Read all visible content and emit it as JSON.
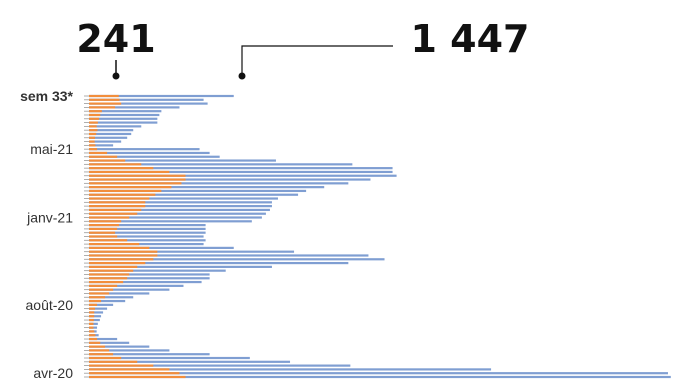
{
  "chart_data": {
    "type": "bar",
    "orientation": "horizontal",
    "stacking": "overlay",
    "xlim": [
      0,
      1450
    ],
    "grid": false,
    "legend": "none",
    "colors": {
      "orange": "#F28E3C",
      "blue": "#7F9ED2",
      "text": "#111111",
      "tick": "#999999"
    },
    "annotations": [
      {
        "text": "241",
        "value": 241
      },
      {
        "text": "1 447",
        "value": 1447
      }
    ],
    "ytick_labels": [
      {
        "text": "sem 33*",
        "row": 0,
        "bold": true
      },
      {
        "text": "mai-21",
        "row": 14
      },
      {
        "text": "janv-21",
        "row": 32
      },
      {
        "text": "août-20",
        "row": 55
      },
      {
        "text": "avr-20",
        "row": 73
      }
    ],
    "series": [
      {
        "values": [
          74,
          76,
          80,
          65,
          32,
          28,
          25,
          22,
          19,
          21,
          18,
          15,
          14,
          16,
          20,
          45,
          70,
          90,
          130,
          160,
          200,
          240,
          240,
          230,
          205,
          180,
          165,
          150,
          140,
          140,
          130,
          120,
          100,
          80,
          75,
          70,
          65,
          70,
          95,
          125,
          150,
          170,
          170,
          160,
          140,
          120,
          110,
          100,
          95,
          85,
          70,
          60,
          50,
          40,
          30,
          20,
          15,
          13,
          13,
          12,
          11,
          11,
          13,
          16,
          20,
          28,
          40,
          50,
          60,
          80,
          120,
          160,
          200,
          225,
          240
        ]
      },
      {
        "values": [
          360,
          285,
          295,
          225,
          180,
          175,
          170,
          170,
          130,
          110,
          105,
          95,
          80,
          60,
          275,
          300,
          325,
          465,
          655,
          755,
          755,
          765,
          700,
          645,
          585,
          540,
          520,
          470,
          455,
          455,
          450,
          440,
          430,
          405,
          290,
          290,
          290,
          285,
          290,
          285,
          360,
          510,
          695,
          735,
          645,
          455,
          340,
          300,
          300,
          280,
          235,
          200,
          150,
          110,
          90,
          60,
          45,
          35,
          30,
          27,
          22,
          20,
          19,
          24,
          70,
          100,
          150,
          200,
          300,
          400,
          500,
          650,
          1000,
          1440,
          1447
        ]
      }
    ]
  }
}
